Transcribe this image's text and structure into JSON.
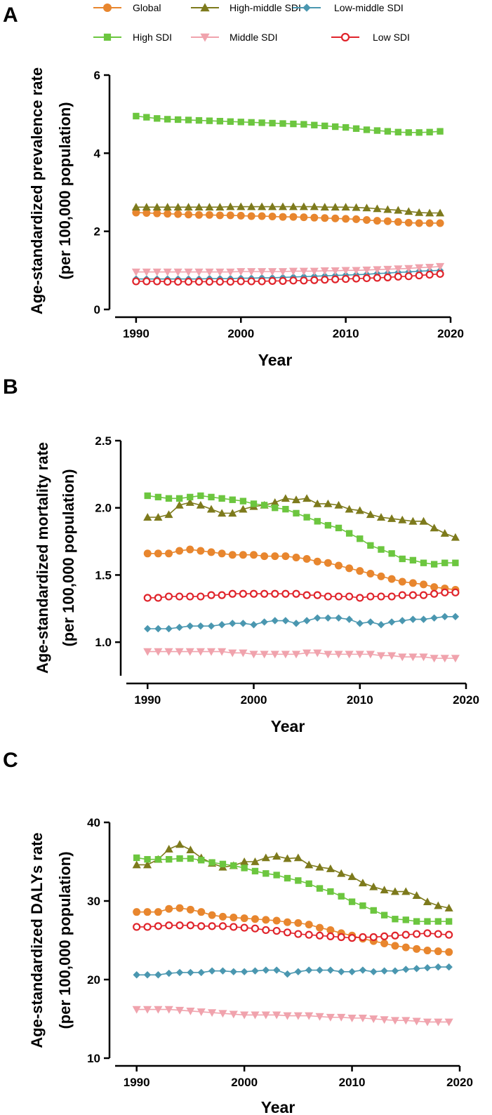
{
  "legend": {
    "items": [
      {
        "name": "Global",
        "color": "#E8862E",
        "marker": "circle"
      },
      {
        "name": "High-middle SDI",
        "color": "#7D7A1C",
        "marker": "triangle"
      },
      {
        "name": "Low-middle SDI",
        "color": "#4A97B0",
        "marker": "diamond"
      },
      {
        "name": "High SDI",
        "color": "#6CC63F",
        "marker": "square"
      },
      {
        "name": "Middle SDI",
        "color": "#F0A3AD",
        "marker": "triangle-down"
      },
      {
        "name": "Low SDI",
        "color": "#E0242B",
        "marker": "circle-open"
      }
    ]
  },
  "chart_data": [
    {
      "type": "line",
      "panel": "A",
      "xlabel": "Year",
      "ylabel": [
        "Age-standardized prevalence rate",
        "(per 100,000 population)"
      ],
      "xlim": [
        1988,
        2020
      ],
      "ylim": [
        0,
        6
      ],
      "xticks": [
        1990,
        2000,
        2010,
        2020
      ],
      "yticks": [
        0,
        2,
        4,
        6
      ],
      "ytick_labels": [
        "0",
        "2",
        "4",
        "6"
      ],
      "x": [
        1990,
        1991,
        1992,
        1993,
        1994,
        1995,
        1996,
        1997,
        1998,
        1999,
        2000,
        2001,
        2002,
        2003,
        2004,
        2005,
        2006,
        2007,
        2008,
        2009,
        2010,
        2011,
        2012,
        2013,
        2014,
        2015,
        2016,
        2017,
        2018,
        2019
      ],
      "series": [
        {
          "name": "Global",
          "values": [
            2.48,
            2.47,
            2.46,
            2.45,
            2.44,
            2.43,
            2.42,
            2.42,
            2.41,
            2.41,
            2.4,
            2.39,
            2.39,
            2.38,
            2.37,
            2.37,
            2.36,
            2.35,
            2.34,
            2.33,
            2.32,
            2.31,
            2.29,
            2.27,
            2.26,
            2.24,
            2.22,
            2.21,
            2.21,
            2.21
          ]
        },
        {
          "name": "High-middle SDI",
          "values": [
            2.62,
            2.62,
            2.62,
            2.62,
            2.62,
            2.62,
            2.62,
            2.62,
            2.62,
            2.63,
            2.63,
            2.63,
            2.63,
            2.63,
            2.63,
            2.63,
            2.63,
            2.63,
            2.62,
            2.62,
            2.62,
            2.61,
            2.6,
            2.58,
            2.56,
            2.54,
            2.51,
            2.48,
            2.47,
            2.47
          ]
        },
        {
          "name": "Low-middle SDI",
          "values": [
            0.78,
            0.78,
            0.78,
            0.78,
            0.78,
            0.78,
            0.78,
            0.79,
            0.79,
            0.79,
            0.8,
            0.8,
            0.81,
            0.81,
            0.82,
            0.83,
            0.84,
            0.85,
            0.86,
            0.87,
            0.88,
            0.89,
            0.9,
            0.92,
            0.93,
            0.95,
            0.96,
            0.98,
            0.99,
            1.0
          ]
        },
        {
          "name": "High SDI",
          "values": [
            4.95,
            4.92,
            4.89,
            4.87,
            4.86,
            4.85,
            4.84,
            4.83,
            4.82,
            4.81,
            4.8,
            4.79,
            4.78,
            4.77,
            4.76,
            4.75,
            4.74,
            4.72,
            4.7,
            4.68,
            4.66,
            4.63,
            4.6,
            4.58,
            4.56,
            4.54,
            4.53,
            4.53,
            4.54,
            4.56
          ]
        },
        {
          "name": "Middle SDI",
          "values": [
            0.96,
            0.96,
            0.96,
            0.96,
            0.96,
            0.96,
            0.96,
            0.96,
            0.96,
            0.96,
            0.97,
            0.97,
            0.97,
            0.97,
            0.97,
            0.98,
            0.98,
            0.98,
            0.99,
            0.99,
            1.0,
            1.0,
            1.01,
            1.02,
            1.03,
            1.04,
            1.05,
            1.07,
            1.08,
            1.1
          ]
        },
        {
          "name": "Low SDI",
          "values": [
            0.72,
            0.72,
            0.72,
            0.71,
            0.71,
            0.71,
            0.71,
            0.71,
            0.71,
            0.71,
            0.72,
            0.72,
            0.72,
            0.73,
            0.73,
            0.74,
            0.74,
            0.75,
            0.76,
            0.77,
            0.78,
            0.79,
            0.8,
            0.81,
            0.82,
            0.84,
            0.85,
            0.87,
            0.89,
            0.91
          ]
        }
      ]
    },
    {
      "type": "line",
      "panel": "B",
      "xlabel": "Year",
      "ylabel": [
        "Age-standardized mortality rate",
        "(per 100,000 population)"
      ],
      "xlim": [
        1988,
        2020
      ],
      "ylim": [
        0.75,
        2.5
      ],
      "xticks": [
        1990,
        2000,
        2010,
        2020
      ],
      "yticks": [
        1.0,
        1.5,
        2.0,
        2.5
      ],
      "ytick_labels": [
        "1.0",
        "1.5",
        "2.0",
        "2.5"
      ],
      "x": [
        1990,
        1991,
        1992,
        1993,
        1994,
        1995,
        1996,
        1997,
        1998,
        1999,
        2000,
        2001,
        2002,
        2003,
        2004,
        2005,
        2006,
        2007,
        2008,
        2009,
        2010,
        2011,
        2012,
        2013,
        2014,
        2015,
        2016,
        2017,
        2018,
        2019
      ],
      "series": [
        {
          "name": "Global",
          "values": [
            1.66,
            1.66,
            1.66,
            1.68,
            1.69,
            1.68,
            1.67,
            1.66,
            1.65,
            1.65,
            1.65,
            1.64,
            1.64,
            1.64,
            1.63,
            1.62,
            1.6,
            1.59,
            1.57,
            1.55,
            1.53,
            1.51,
            1.49,
            1.47,
            1.45,
            1.44,
            1.43,
            1.41,
            1.4,
            1.39
          ]
        },
        {
          "name": "High-middle SDI",
          "values": [
            1.93,
            1.93,
            1.95,
            2.02,
            2.04,
            2.02,
            1.99,
            1.96,
            1.96,
            1.99,
            2.01,
            2.02,
            2.04,
            2.07,
            2.06,
            2.07,
            2.03,
            2.03,
            2.02,
            1.99,
            1.98,
            1.95,
            1.93,
            1.92,
            1.91,
            1.9,
            1.9,
            1.85,
            1.81,
            1.78
          ]
        },
        {
          "name": "Low-middle SDI",
          "values": [
            1.1,
            1.1,
            1.1,
            1.11,
            1.12,
            1.12,
            1.12,
            1.13,
            1.14,
            1.14,
            1.13,
            1.15,
            1.16,
            1.16,
            1.14,
            1.16,
            1.18,
            1.18,
            1.18,
            1.17,
            1.14,
            1.15,
            1.13,
            1.15,
            1.16,
            1.17,
            1.17,
            1.18,
            1.19,
            1.19
          ]
        },
        {
          "name": "High SDI",
          "values": [
            2.09,
            2.08,
            2.07,
            2.07,
            2.08,
            2.09,
            2.08,
            2.07,
            2.06,
            2.05,
            2.03,
            2.02,
            2.0,
            1.99,
            1.96,
            1.93,
            1.9,
            1.87,
            1.85,
            1.81,
            1.77,
            1.72,
            1.69,
            1.66,
            1.62,
            1.61,
            1.59,
            1.58,
            1.59,
            1.59
          ]
        },
        {
          "name": "Middle SDI",
          "values": [
            0.93,
            0.93,
            0.93,
            0.93,
            0.93,
            0.93,
            0.93,
            0.93,
            0.92,
            0.92,
            0.91,
            0.91,
            0.91,
            0.91,
            0.91,
            0.92,
            0.92,
            0.91,
            0.91,
            0.91,
            0.91,
            0.91,
            0.9,
            0.9,
            0.89,
            0.89,
            0.89,
            0.88,
            0.88,
            0.88
          ]
        },
        {
          "name": "Low SDI",
          "values": [
            1.33,
            1.33,
            1.34,
            1.34,
            1.34,
            1.34,
            1.35,
            1.35,
            1.36,
            1.36,
            1.36,
            1.36,
            1.36,
            1.36,
            1.36,
            1.35,
            1.35,
            1.34,
            1.34,
            1.34,
            1.33,
            1.34,
            1.34,
            1.34,
            1.35,
            1.35,
            1.35,
            1.36,
            1.37,
            1.37
          ]
        }
      ]
    },
    {
      "type": "line",
      "panel": "C",
      "xlabel": "Year",
      "ylabel": [
        "Age-standardized DALYs rate",
        "(per 100,000 population)"
      ],
      "xlim": [
        1988,
        2020
      ],
      "ylim": [
        10,
        40
      ],
      "xticks": [
        1990,
        2000,
        2010,
        2020
      ],
      "yticks": [
        10,
        20,
        30,
        40
      ],
      "ytick_labels": [
        "10",
        "20",
        "30",
        "40"
      ],
      "x": [
        1990,
        1991,
        1992,
        1993,
        1994,
        1995,
        1996,
        1997,
        1998,
        1999,
        2000,
        2001,
        2002,
        2003,
        2004,
        2005,
        2006,
        2007,
        2008,
        2009,
        2010,
        2011,
        2012,
        2013,
        2014,
        2015,
        2016,
        2017,
        2018,
        2019
      ],
      "series": [
        {
          "name": "Global",
          "values": [
            28.6,
            28.6,
            28.6,
            29.0,
            29.1,
            28.9,
            28.6,
            28.2,
            28.0,
            27.9,
            27.8,
            27.7,
            27.6,
            27.5,
            27.3,
            27.2,
            27.0,
            26.6,
            26.3,
            25.9,
            25.6,
            25.2,
            24.9,
            24.6,
            24.3,
            24.1,
            23.9,
            23.7,
            23.6,
            23.5
          ]
        },
        {
          "name": "High-middle SDI",
          "values": [
            34.6,
            34.6,
            35.3,
            36.6,
            37.2,
            36.5,
            35.5,
            34.8,
            34.3,
            34.5,
            35.0,
            35.0,
            35.5,
            35.7,
            35.4,
            35.5,
            34.6,
            34.3,
            34.1,
            33.5,
            33.1,
            32.3,
            31.8,
            31.4,
            31.2,
            31.2,
            30.7,
            29.9,
            29.4,
            29.1
          ]
        },
        {
          "name": "Low-middle SDI",
          "values": [
            20.6,
            20.6,
            20.6,
            20.8,
            20.9,
            20.9,
            20.9,
            21.1,
            21.1,
            21.0,
            21.0,
            21.1,
            21.2,
            21.2,
            20.7,
            21.0,
            21.2,
            21.2,
            21.2,
            21.0,
            21.0,
            21.2,
            21.0,
            21.1,
            21.1,
            21.3,
            21.4,
            21.5,
            21.6,
            21.6
          ]
        },
        {
          "name": "High SDI",
          "values": [
            35.5,
            35.3,
            35.3,
            35.3,
            35.4,
            35.4,
            35.2,
            34.9,
            34.7,
            34.5,
            34.2,
            33.8,
            33.5,
            33.3,
            32.9,
            32.6,
            32.2,
            31.6,
            31.2,
            30.6,
            29.9,
            29.4,
            28.8,
            28.2,
            27.7,
            27.6,
            27.4,
            27.4,
            27.4,
            27.4
          ]
        },
        {
          "name": "Middle SDI",
          "values": [
            16.2,
            16.2,
            16.2,
            16.2,
            16.1,
            16.0,
            15.9,
            15.8,
            15.7,
            15.6,
            15.5,
            15.5,
            15.5,
            15.5,
            15.4,
            15.4,
            15.4,
            15.3,
            15.2,
            15.2,
            15.1,
            15.1,
            15.0,
            14.9,
            14.8,
            14.8,
            14.7,
            14.6,
            14.6,
            14.6
          ]
        },
        {
          "name": "Low SDI",
          "values": [
            26.7,
            26.7,
            26.8,
            26.9,
            26.9,
            26.9,
            26.8,
            26.8,
            26.8,
            26.7,
            26.6,
            26.5,
            26.3,
            26.2,
            26.0,
            25.8,
            25.7,
            25.6,
            25.5,
            25.4,
            25.3,
            25.4,
            25.4,
            25.5,
            25.6,
            25.7,
            25.8,
            25.9,
            25.8,
            25.7
          ]
        }
      ]
    }
  ]
}
